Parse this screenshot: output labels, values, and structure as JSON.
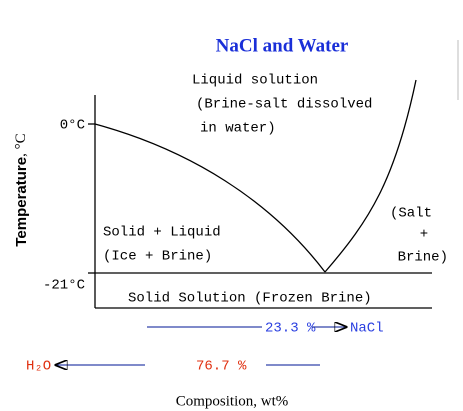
{
  "title": "NaCl and Water",
  "y_axis": {
    "label": "Temperature",
    "unit": ", °C",
    "ticks": [
      "0°C",
      "-21°C"
    ]
  },
  "regions": {
    "liquid": [
      "Liquid solution",
      "(Brine-salt dissolved",
      "in water)"
    ],
    "solid_liquid": [
      "Solid + Liquid",
      "(Ice + Brine)"
    ],
    "salt_brine": [
      "(Salt",
      "+",
      "Brine)"
    ],
    "solid": "Solid Solution (Frozen Brine)"
  },
  "composition": {
    "nacl_value": "23.3 %",
    "nacl_label": "NaCl",
    "water_label": "H₂O",
    "water_value": "76.7 %",
    "x_axis_label": "Composition, wt%"
  }
}
